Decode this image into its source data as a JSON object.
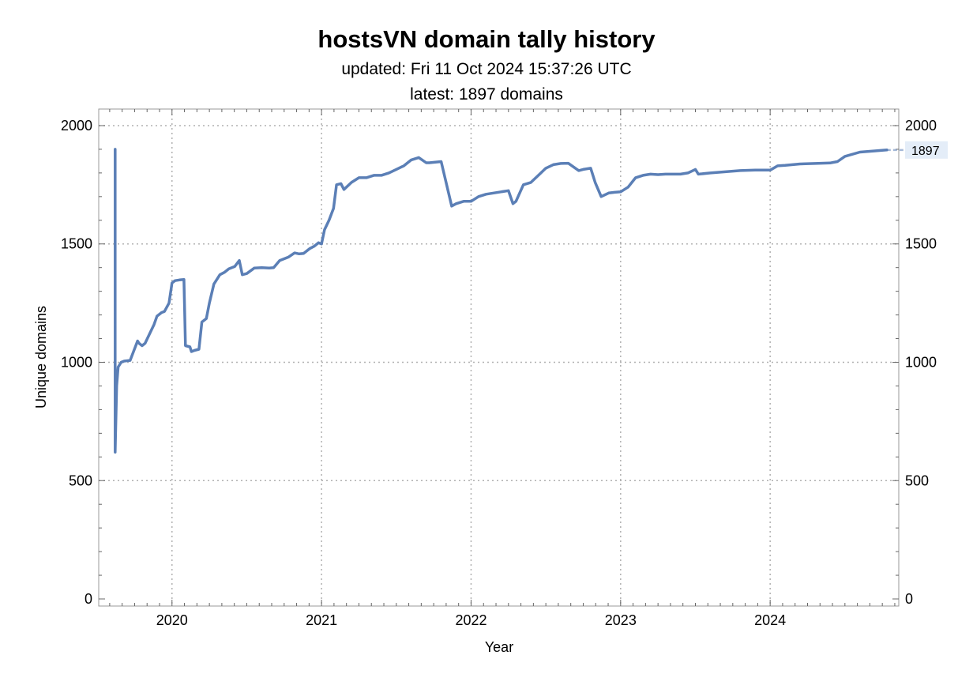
{
  "title": "hostsVN domain tally history",
  "subtitle_updated": "updated: Fri 11 Oct 2024 15:37:26 UTC",
  "subtitle_latest": "latest: 1897 domains",
  "colors": {
    "line": "#5b7fb6",
    "grid": "#b0b0b0",
    "frame": "#999999",
    "end_label_bg": "#e4edf8"
  },
  "chart_data": {
    "type": "line",
    "xlabel": "Year",
    "ylabel": "Unique domains",
    "xlim": [
      2019.51,
      2024.86
    ],
    "ylim": [
      -30,
      2070
    ],
    "x_ticks": [
      {
        "value": 2020,
        "label": "2020"
      },
      {
        "value": 2021,
        "label": "2021"
      },
      {
        "value": 2022,
        "label": "2022"
      },
      {
        "value": 2023,
        "label": "2023"
      },
      {
        "value": 2024,
        "label": "2024"
      }
    ],
    "y_ticks": [
      {
        "value": 0,
        "label": "0"
      },
      {
        "value": 500,
        "label": "500"
      },
      {
        "value": 1000,
        "label": "1000"
      },
      {
        "value": 1500,
        "label": "1500"
      },
      {
        "value": 2000,
        "label": "2000"
      }
    ],
    "grid": true,
    "end_label": "1897",
    "series": [
      {
        "x": [
          2019.62,
          2019.62,
          2019.62,
          2019.63,
          2019.64,
          2019.66,
          2019.68,
          2019.72,
          2019.77,
          2019.78,
          2019.8,
          2019.82,
          2019.85,
          2019.88,
          2019.9,
          2019.93,
          2019.95,
          2019.98,
          2020.0,
          2020.02,
          2020.05,
          2020.08,
          2020.09,
          2020.12,
          2020.13,
          2020.15,
          2020.18,
          2020.2,
          2020.23,
          2020.25,
          2020.28,
          2020.32,
          2020.35,
          2020.38,
          2020.42,
          2020.45,
          2020.47,
          2020.5,
          2020.55,
          2020.6,
          2020.65,
          2020.68,
          2020.72,
          2020.78,
          2020.82,
          2020.85,
          2020.88,
          2020.92,
          2020.95,
          2020.98,
          2021.0,
          2021.02,
          2021.05,
          2021.08,
          2021.1,
          2021.13,
          2021.15,
          2021.2,
          2021.25,
          2021.3,
          2021.35,
          2021.4,
          2021.45,
          2021.5,
          2021.55,
          2021.6,
          2021.65,
          2021.7,
          2021.72,
          2021.8,
          2021.87,
          2021.9,
          2021.95,
          2022.0,
          2022.05,
          2022.1,
          2022.15,
          2022.2,
          2022.25,
          2022.28,
          2022.3,
          2022.35,
          2022.4,
          2022.45,
          2022.5,
          2022.55,
          2022.6,
          2022.65,
          2022.72,
          2022.75,
          2022.8,
          2022.83,
          2022.87,
          2022.92,
          2022.96,
          2023.0,
          2023.05,
          2023.1,
          2023.15,
          2023.2,
          2023.25,
          2023.3,
          2023.4,
          2023.45,
          2023.5,
          2023.52,
          2023.6,
          2023.7,
          2023.8,
          2023.9,
          2024.0,
          2024.05,
          2024.1,
          2024.2,
          2024.3,
          2024.4,
          2024.45,
          2024.5,
          2024.6,
          2024.7,
          2024.78
        ],
        "y": [
          1900,
          1290,
          620,
          900,
          980,
          1000,
          1005,
          1008,
          1090,
          1080,
          1070,
          1080,
          1120,
          1160,
          1195,
          1210,
          1215,
          1250,
          1335,
          1345,
          1348,
          1350,
          1070,
          1065,
          1045,
          1050,
          1055,
          1170,
          1185,
          1250,
          1330,
          1370,
          1380,
          1395,
          1405,
          1430,
          1370,
          1375,
          1398,
          1400,
          1398,
          1400,
          1430,
          1445,
          1462,
          1458,
          1460,
          1480,
          1490,
          1505,
          1500,
          1560,
          1600,
          1650,
          1750,
          1755,
          1730,
          1760,
          1780,
          1780,
          1790,
          1790,
          1800,
          1815,
          1830,
          1855,
          1865,
          1843,
          1843,
          1848,
          1660,
          1670,
          1680,
          1680,
          1700,
          1710,
          1715,
          1720,
          1725,
          1670,
          1680,
          1750,
          1760,
          1790,
          1820,
          1835,
          1840,
          1841,
          1810,
          1815,
          1820,
          1760,
          1700,
          1715,
          1718,
          1720,
          1740,
          1780,
          1790,
          1795,
          1793,
          1795,
          1795,
          1800,
          1815,
          1795,
          1800,
          1805,
          1810,
          1812,
          1812,
          1830,
          1832,
          1838,
          1840,
          1842,
          1848,
          1870,
          1888,
          1893,
          1897
        ]
      }
    ]
  }
}
